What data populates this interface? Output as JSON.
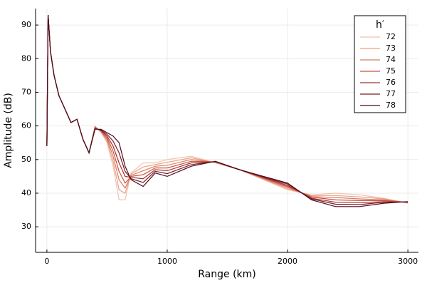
{
  "chart_data": {
    "type": "line",
    "x_label": "Range (km)",
    "y_label": "Amplitude (dB)",
    "legend_title": "h′",
    "legend": "top-right",
    "grid": true,
    "xlim": [
      -94,
      3088
    ],
    "ylim": [
      22.4,
      94.9
    ],
    "xticks": [
      0,
      1000,
      2000,
      3000
    ],
    "yticks": [
      30,
      40,
      50,
      60,
      70,
      80,
      90
    ],
    "x": [
      0,
      10,
      30,
      60,
      100,
      150,
      200,
      250,
      300,
      350,
      400,
      450,
      500,
      550,
      600,
      650,
      700,
      800,
      900,
      1000,
      1200,
      1400,
      1600,
      1800,
      2000,
      2200,
      2400,
      2600,
      2800,
      3000
    ],
    "series": [
      {
        "name": "72",
        "color": "#f0c4ae",
        "values": [
          54,
          93,
          82,
          75,
          69,
          65,
          61,
          62,
          56,
          52,
          60,
          58,
          55,
          48,
          38,
          38,
          46,
          49,
          49,
          50,
          51,
          49,
          47,
          44,
          41,
          39.5,
          40,
          39.5,
          38.5,
          37
        ]
      },
      {
        "name": "73",
        "color": "#e8a288",
        "values": [
          54,
          93,
          82,
          75,
          69,
          65,
          61,
          62,
          56,
          52,
          59.8,
          58.2,
          55.5,
          49.5,
          41,
          40,
          45.7,
          47.8,
          48.5,
          49.2,
          50.5,
          49.1,
          47,
          44.2,
          41.3,
          39.3,
          39.3,
          38.9,
          38.3,
          37.1
        ]
      },
      {
        "name": "74",
        "color": "#dc7c62",
        "values": [
          54,
          93,
          82,
          75,
          69,
          65,
          61,
          62,
          56,
          52,
          59.7,
          58.3,
          56,
          51,
          44,
          41.5,
          45.3,
          46.7,
          48,
          48.3,
          50,
          49.2,
          47,
          44.3,
          41.7,
          39,
          38.7,
          38.3,
          38,
          37.2
        ]
      },
      {
        "name": "75",
        "color": "#c85440",
        "values": [
          54,
          93,
          82,
          75,
          69,
          65,
          61,
          62,
          56,
          52,
          59.5,
          58.5,
          56.5,
          52.5,
          46.5,
          43,
          45,
          45.5,
          47.5,
          47.5,
          49.5,
          49.3,
          47,
          44.5,
          42,
          38.8,
          38,
          37.8,
          37.8,
          37.3
        ]
      },
      {
        "name": "76",
        "color": "#a8322e",
        "values": [
          54,
          93,
          82,
          75,
          69,
          65,
          61,
          62,
          56,
          52,
          59.3,
          58.7,
          57,
          54,
          49,
          45,
          44.7,
          44.3,
          47,
          46.7,
          49,
          49.3,
          47,
          44.7,
          42.3,
          38.5,
          37.3,
          37.2,
          37.5,
          37.3
        ]
      },
      {
        "name": "77",
        "color": "#7c1c26",
        "values": [
          54,
          93,
          82,
          75,
          69,
          65,
          61,
          62,
          56,
          52,
          59.2,
          58.8,
          57.5,
          55.5,
          52,
          46.5,
          44.3,
          43.2,
          46.5,
          45.8,
          48.5,
          49.4,
          47,
          44.8,
          42.7,
          38.3,
          36.7,
          36.6,
          37.3,
          37.4
        ]
      },
      {
        "name": "78",
        "color": "#4a0c1e",
        "values": [
          54,
          93,
          82,
          75,
          69,
          65,
          61,
          62,
          56,
          52,
          59,
          59,
          58,
          57,
          55,
          48,
          44,
          42,
          46,
          45,
          48,
          49.5,
          47,
          45,
          43,
          38,
          36,
          36,
          37,
          37.5
        ]
      }
    ]
  }
}
